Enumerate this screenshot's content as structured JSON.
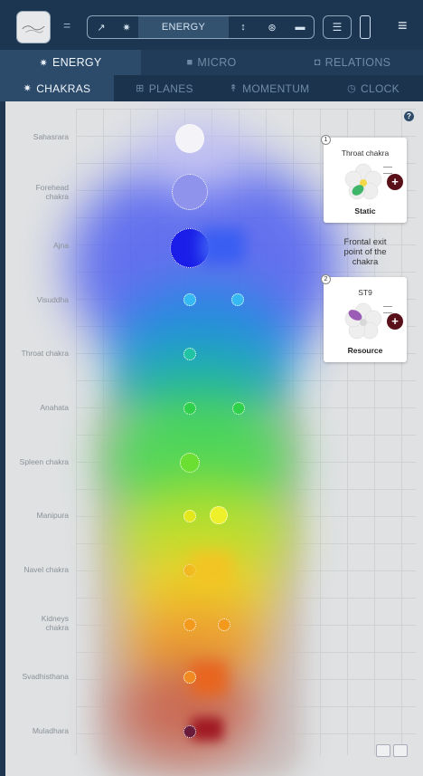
{
  "toolbar": {
    "equals_label": "=",
    "segments": [
      "↗",
      "✷",
      "ENERGY",
      "↕",
      "⊛",
      "▬"
    ],
    "menu_label": "☰",
    "hamburger": "≡"
  },
  "tabs_primary": [
    {
      "icon": "✷",
      "label": "ENERGY",
      "active": true
    },
    {
      "icon": "■",
      "label": "MICRO",
      "active": false
    },
    {
      "icon": "◘",
      "label": "RELATIONS",
      "active": false
    }
  ],
  "tabs_secondary": [
    {
      "icon": "✷",
      "label": "CHAKRAS",
      "active": true
    },
    {
      "icon": "⊞",
      "label": "PLANES",
      "active": false
    },
    {
      "icon": "↟",
      "label": "MOMENTUM",
      "active": false
    },
    {
      "icon": "◷",
      "label": "CLOCK",
      "active": false
    }
  ],
  "chakra_labels": [
    [
      "Sahasrara"
    ],
    [
      "Forehead",
      "chakra"
    ],
    [
      "Ajna"
    ],
    [
      "Visuddha"
    ],
    [
      "Throat chakra"
    ],
    [
      "Anahata"
    ],
    [
      "Spleen chakra"
    ],
    [
      "Manipura"
    ],
    [
      "Navel chakra"
    ],
    [
      "Kidneys",
      "chakra"
    ],
    [
      "Svadhisthana"
    ],
    [
      "Muladhara"
    ]
  ],
  "help_label": "?",
  "cards": [
    {
      "num": "1",
      "title": "Throat chakra",
      "subtitle": "Static",
      "leaf_color": "#3fb56a"
    },
    {
      "num": "2",
      "title": "ST9",
      "subtitle": "Resource",
      "leaf_color": "#9a5cb4"
    }
  ],
  "exit_note": [
    "Frontal exit",
    "point of the",
    "chakra"
  ],
  "colors": {
    "accent": "#2c4a6a",
    "plus": "#5a1018"
  }
}
